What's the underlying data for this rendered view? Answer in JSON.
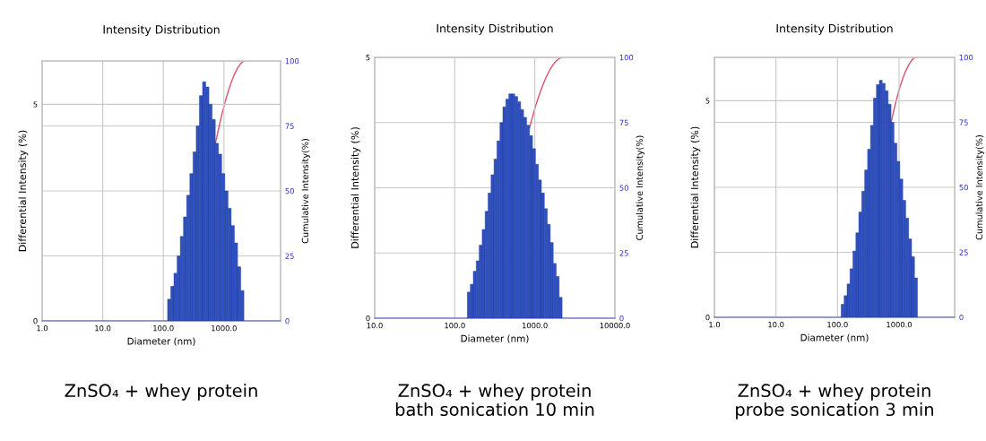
{
  "chart_data": [
    {
      "type": "histogram",
      "title": "Intensity Distribution",
      "xlabel": "Diameter (nm)",
      "ylabel": "Differential Intensity (%)",
      "y2label": "Cumulative Intensity(%)",
      "log": "x",
      "grid": true,
      "xlim": [
        1,
        8600
      ],
      "xticks": [
        {
          "value": 1,
          "label": "1.0"
        },
        {
          "value": 10,
          "label": "10.0"
        },
        {
          "value": 100,
          "label": "100.0"
        },
        {
          "value": 1000,
          "label": "1000.0"
        }
      ],
      "ylim": [
        0,
        6
      ],
      "yticks": [
        0,
        5
      ],
      "y2lim": [
        0,
        100
      ],
      "y2ticks": [
        0,
        25,
        50,
        75,
        100
      ],
      "series": [
        {
          "color": "#2f50c0",
          "bins": [
            117.5,
            132.6,
            149.6,
            168.8,
            190.5,
            215.0,
            242.7,
            273.8,
            309.0,
            348.7,
            393.6,
            444.1,
            501.2,
            565.6,
            638.3,
            720.4,
            812.8,
            917.3,
            1035,
            1168,
            1318,
            1488,
            1679,
            1895,
            2138
          ],
          "values": [
            0.5,
            0.8,
            1.1,
            1.5,
            1.95,
            2.4,
            2.9,
            3.4,
            3.9,
            4.5,
            5.2,
            5.52,
            5.4,
            5.0,
            4.65,
            4.1,
            3.85,
            3.4,
            3.0,
            2.6,
            2.2,
            1.8,
            1.25,
            0.7
          ]
        },
        {
          "type": "line",
          "axis": "y2",
          "color": "#e0506a",
          "x": [
            720.4,
            812.8,
            917.3,
            1035,
            1168,
            1318,
            1488,
            1679,
            1895,
            2138
          ],
          "values": [
            68.0,
            73.7,
            79.1,
            83.9,
            88.1,
            91.7,
            94.8,
            97.3,
            99.0,
            100
          ]
        }
      ],
      "annotations": [
        "ZnSO₄ + whey protein"
      ]
    },
    {
      "type": "histogram",
      "title": "Intensity Distribution",
      "xlabel": "Diameter (nm)",
      "ylabel": "Differential Intensity (%)",
      "y2label": "Cumulative Intensity(%)",
      "log": "x",
      "grid": true,
      "xlim": [
        10,
        10000
      ],
      "xticks": [
        {
          "value": 10,
          "label": "10.0"
        },
        {
          "value": 100,
          "label": "100.0"
        },
        {
          "value": 1000,
          "label": "1000.0"
        },
        {
          "value": 10000,
          "label": "10000.0"
        }
      ],
      "ylim": [
        0,
        5
      ],
      "yticks": [
        0,
        5
      ],
      "y2lim": [
        0,
        100
      ],
      "y2ticks": [
        0,
        25,
        50,
        75,
        100
      ],
      "series": [
        {
          "color": "#2f50c0",
          "bins": [
            143.6,
            156.4,
            170.3,
            185.4,
            201.9,
            219.8,
            239.4,
            260.7,
            283.8,
            309.1,
            336.5,
            366.5,
            399.0,
            434.5,
            473.2,
            515.2,
            561.0,
            610.9,
            665.3,
            724.4,
            788.8,
            859.0,
            935.3,
            1018,
            1109,
            1208,
            1315,
            1432,
            1559,
            1698,
            1849,
            2013,
            2192
          ],
          "values": [
            0.5,
            0.65,
            0.9,
            1.1,
            1.4,
            1.7,
            2.05,
            2.4,
            2.75,
            3.05,
            3.4,
            3.75,
            4.05,
            4.2,
            4.3,
            4.3,
            4.25,
            4.15,
            4.0,
            3.85,
            3.7,
            3.5,
            3.25,
            2.95,
            2.65,
            2.4,
            2.1,
            1.8,
            1.45,
            1.05,
            0.8,
            0.4
          ]
        },
        {
          "type": "line",
          "axis": "y2",
          "color": "#e0506a",
          "x": [
            859.0,
            935.3,
            1018,
            1109,
            1208,
            1315,
            1432,
            1559,
            1698,
            1849,
            2013,
            2192
          ],
          "values": [
            73.0,
            77.2,
            81.2,
            84.7,
            87.9,
            90.8,
            93.4,
            95.5,
            97.3,
            98.6,
            99.5,
            100
          ]
        }
      ],
      "annotations": [
        "ZnSO₄ + whey protein\nbath sonication 10 min"
      ]
    },
    {
      "type": "histogram",
      "title": "Intensity Distribution",
      "xlabel": "Diameter (nm)",
      "ylabel": "Differential Intensity (%)",
      "y2label": "Cumulative Intensity(%)",
      "log": "x",
      "grid": true,
      "xlim": [
        1,
        8000
      ],
      "xticks": [
        {
          "value": 1,
          "label": "1.0"
        },
        {
          "value": 10,
          "label": "10.0"
        },
        {
          "value": 100,
          "label": "100.0"
        },
        {
          "value": 1000,
          "label": "1000.0"
        }
      ],
      "ylim": [
        0,
        6
      ],
      "yticks": [
        0,
        5
      ],
      "y2lim": [
        0,
        100
      ],
      "y2ticks": [
        0,
        25,
        50,
        75,
        100
      ],
      "series": [
        {
          "color": "#2f50c0",
          "bins": [
            114.8,
            128.1,
            143.0,
            159.6,
            178.1,
            198.7,
            221.8,
            247.5,
            276.2,
            308.2,
            344.0,
            383.9,
            428.4,
            478.1,
            533.6,
            595.5,
            664.6,
            741.7,
            827.7,
            923.7,
            1031,
            1150,
            1284,
            1433,
            1599,
            1785,
            1992
          ],
          "values": [
            0.3,
            0.5,
            0.77,
            1.12,
            1.53,
            1.95,
            2.43,
            2.91,
            3.4,
            3.88,
            4.43,
            5.06,
            5.37,
            5.47,
            5.4,
            5.23,
            4.92,
            4.5,
            4.02,
            3.6,
            3.19,
            2.7,
            2.29,
            1.81,
            1.4,
            0.91
          ]
        },
        {
          "type": "line",
          "axis": "y2",
          "color": "#e0506a",
          "x": [
            741.7,
            827.7,
            923.7,
            1031,
            1150,
            1284,
            1433,
            1599,
            1785,
            1992
          ],
          "values": [
            74.8,
            79.9,
            84.4,
            88.5,
            91.9,
            94.8,
            97.1,
            98.8,
            100,
            100
          ]
        }
      ],
      "annotations": [
        "ZnSO₄ + whey protein\nprobe sonication 3 min"
      ]
    }
  ]
}
